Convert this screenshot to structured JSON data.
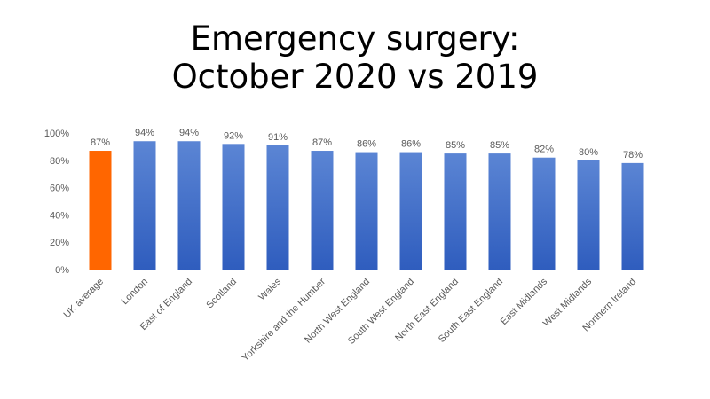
{
  "title_line1": "Emergency surgery:",
  "title_line2": "October 2020 vs 2019",
  "chart_data": {
    "type": "bar",
    "title": "Emergency surgery: October 2020 vs 2019",
    "categories": [
      "UK average",
      "London",
      "East of England",
      "Scotland",
      "Wales",
      "Yorkshire and the Humber",
      "North West England",
      "South West England",
      "North East England",
      "South East England",
      "East Midlands",
      "West Midlands",
      "Northern Ireland"
    ],
    "values": [
      87,
      94,
      94,
      92,
      91,
      87,
      86,
      86,
      85,
      85,
      82,
      80,
      78
    ],
    "data_labels": [
      "87%",
      "94%",
      "94%",
      "92%",
      "91%",
      "87%",
      "86%",
      "86%",
      "85%",
      "85%",
      "82%",
      "80%",
      "78%"
    ],
    "y_ticks": [
      "0%",
      "20%",
      "40%",
      "60%",
      "80%",
      "100%"
    ],
    "ylim": [
      0,
      100
    ],
    "xlabel": "",
    "ylabel": "",
    "grid": false,
    "legend": "none",
    "colors": {
      "highlight": "#FF6600",
      "bar_top": "#5B85D4",
      "bar_bottom": "#2F5DBE",
      "axis": "#D9D9D9",
      "text": "#595959"
    }
  }
}
